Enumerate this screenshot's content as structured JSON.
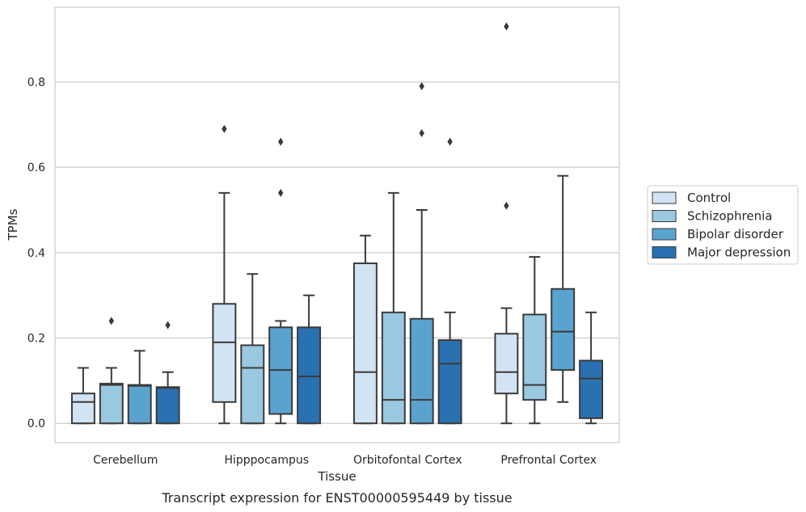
{
  "caption": "Transcript expression for ENST00000595449 by tissue",
  "chart_data": {
    "type": "boxplot",
    "xlabel": "Tissue",
    "ylabel": "TPMs",
    "ylim": [
      -0.045,
      0.975
    ],
    "y_ticks": [
      0.0,
      0.2,
      0.4,
      0.6,
      0.8
    ],
    "y_tick_labels": [
      "0.0",
      "0.2",
      "0.4",
      "0.6",
      "0.8"
    ],
    "grid": "horizontal",
    "legend_position": "right",
    "categories": [
      "Cerebellum",
      "Hipppocampus",
      "Orbitofontal Cortex",
      "Prefrontal Cortex"
    ],
    "series": [
      {
        "name": "Control",
        "color": "#d2e3f3",
        "boxes": [
          {
            "whislo": 0.0,
            "q1": 0.0,
            "med": 0.05,
            "q3": 0.07,
            "whishi": 0.13,
            "fliers": []
          },
          {
            "whislo": 0.0,
            "q1": 0.05,
            "med": 0.19,
            "q3": 0.28,
            "whishi": 0.54,
            "fliers": [
              0.69
            ]
          },
          {
            "whislo": 0.0,
            "q1": 0.0,
            "med": 0.12,
            "q3": 0.375,
            "whishi": 0.44,
            "fliers": []
          },
          {
            "whislo": 0.0,
            "q1": 0.07,
            "med": 0.12,
            "q3": 0.21,
            "whishi": 0.27,
            "fliers": [
              0.51,
              0.93
            ]
          }
        ]
      },
      {
        "name": "Schizophrenia",
        "color": "#9ac8e0",
        "boxes": [
          {
            "whislo": 0.0,
            "q1": 0.0,
            "med": 0.09,
            "q3": 0.093,
            "whishi": 0.13,
            "fliers": [
              0.24
            ]
          },
          {
            "whislo": 0.0,
            "q1": 0.0,
            "med": 0.13,
            "q3": 0.183,
            "whishi": 0.35,
            "fliers": []
          },
          {
            "whislo": 0.0,
            "q1": 0.0,
            "med": 0.055,
            "q3": 0.26,
            "whishi": 0.54,
            "fliers": []
          },
          {
            "whislo": 0.0,
            "q1": 0.055,
            "med": 0.09,
            "q3": 0.255,
            "whishi": 0.39,
            "fliers": []
          }
        ]
      },
      {
        "name": "Bipolar disorder",
        "color": "#5ba3cf",
        "boxes": [
          {
            "whislo": 0.0,
            "q1": 0.0,
            "med": 0.088,
            "q3": 0.09,
            "whishi": 0.17,
            "fliers": []
          },
          {
            "whislo": 0.0,
            "q1": 0.022,
            "med": 0.125,
            "q3": 0.225,
            "whishi": 0.24,
            "fliers": [
              0.54,
              0.66
            ]
          },
          {
            "whislo": 0.0,
            "q1": 0.0,
            "med": 0.055,
            "q3": 0.245,
            "whishi": 0.5,
            "fliers": [
              0.68,
              0.79
            ]
          },
          {
            "whislo": 0.05,
            "q1": 0.125,
            "med": 0.215,
            "q3": 0.315,
            "whishi": 0.58,
            "fliers": []
          }
        ]
      },
      {
        "name": "Major depression",
        "color": "#2a71b1",
        "boxes": [
          {
            "whislo": 0.0,
            "q1": 0.0,
            "med": 0.083,
            "q3": 0.085,
            "whishi": 0.12,
            "fliers": [
              0.23
            ]
          },
          {
            "whislo": 0.0,
            "q1": 0.0,
            "med": 0.11,
            "q3": 0.225,
            "whishi": 0.3,
            "fliers": []
          },
          {
            "whislo": 0.0,
            "q1": 0.0,
            "med": 0.14,
            "q3": 0.195,
            "whishi": 0.26,
            "fliers": [
              0.66
            ]
          },
          {
            "whislo": 0.0,
            "q1": 0.012,
            "med": 0.105,
            "q3": 0.147,
            "whishi": 0.26,
            "fliers": []
          }
        ]
      }
    ]
  }
}
